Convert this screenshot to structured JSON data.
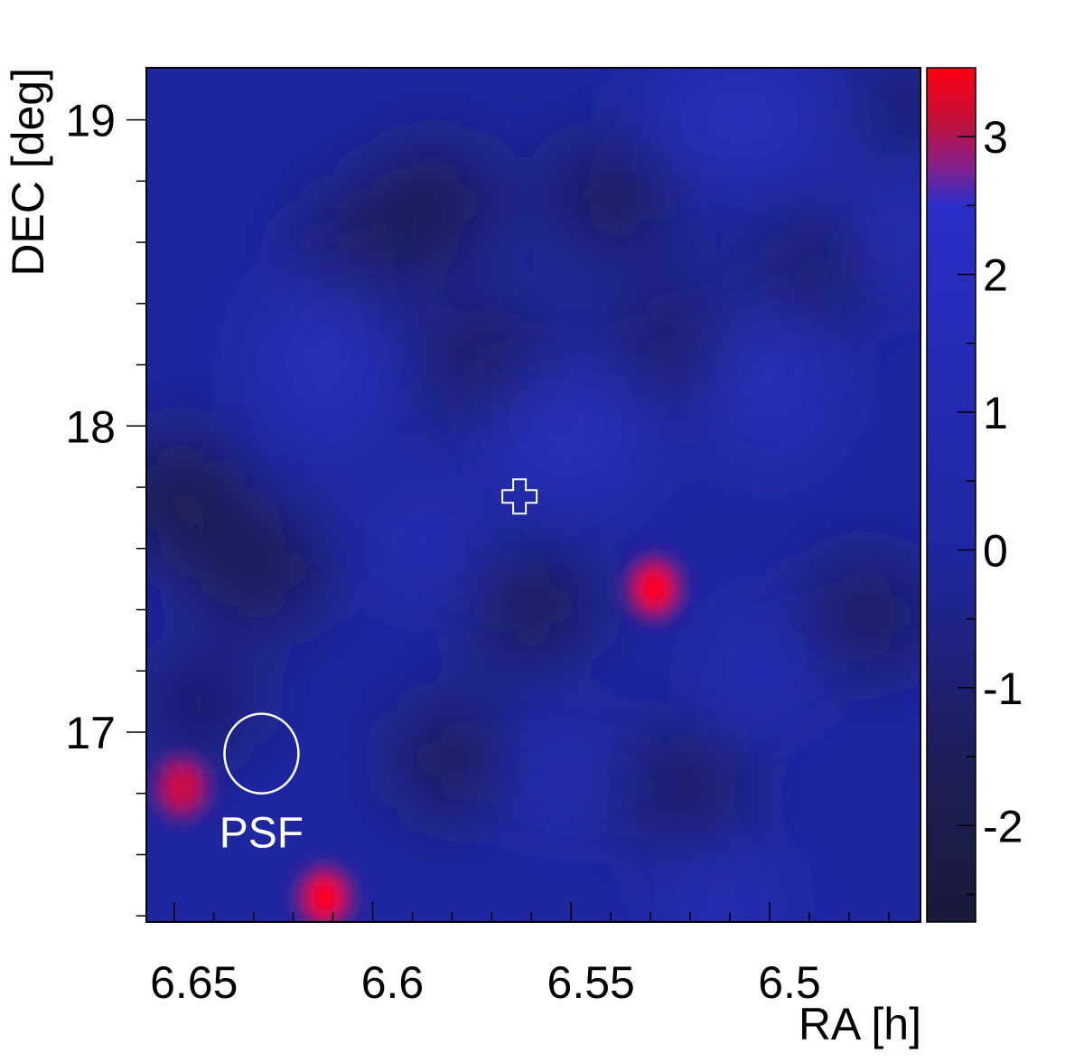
{
  "chart_data": {
    "type": "heatmap",
    "title": "",
    "xlabel": "RA [h]",
    "ylabel": "DEC [deg]",
    "x_axis": {
      "reversed": true,
      "range": [
        6.662,
        6.467
      ],
      "ticks": [
        6.65,
        6.6,
        6.55,
        6.5
      ],
      "tick_labels": [
        "6.65",
        "6.6",
        "6.55",
        "6.5"
      ]
    },
    "y_axis": {
      "range": [
        16.38,
        19.17
      ],
      "ticks": [
        17,
        18,
        19
      ],
      "tick_labels": [
        "17",
        "18",
        "19"
      ]
    },
    "colorbar": {
      "range": [
        -2.7,
        3.5
      ],
      "ticks": [
        -2,
        -1,
        0,
        1,
        2,
        3
      ],
      "tick_labels": [
        "-2",
        "-1",
        "0",
        "1",
        "2",
        "3"
      ],
      "colormap": [
        {
          "v": -2.7,
          "color": "#1a1a3a"
        },
        {
          "v": -1.5,
          "color": "#1e1e5a"
        },
        {
          "v": 0.0,
          "color": "#1f27a0"
        },
        {
          "v": 2.5,
          "color": "#2a2ec8"
        },
        {
          "v": 2.8,
          "color": "#8a1f88"
        },
        {
          "v": 3.1,
          "color": "#c0103c"
        },
        {
          "v": 3.5,
          "color": "#ff0010"
        }
      ]
    },
    "background_value": 0.2,
    "hotspots": [
      {
        "ra": 6.534,
        "dec": 17.47,
        "peak": 3.5
      },
      {
        "ra": 6.617,
        "dec": 16.46,
        "peak": 3.5
      },
      {
        "ra": 6.653,
        "dec": 16.82,
        "peak": 3.2
      }
    ],
    "markers": [
      {
        "kind": "cross",
        "ra": 6.568,
        "dec": 17.77
      }
    ],
    "annotations": [
      {
        "text": "PSF",
        "kind": "psf-circle",
        "ra": 6.633,
        "dec": 16.93,
        "radius_deg": 0.13
      }
    ],
    "grid": false,
    "legend": "colorbar-right"
  }
}
